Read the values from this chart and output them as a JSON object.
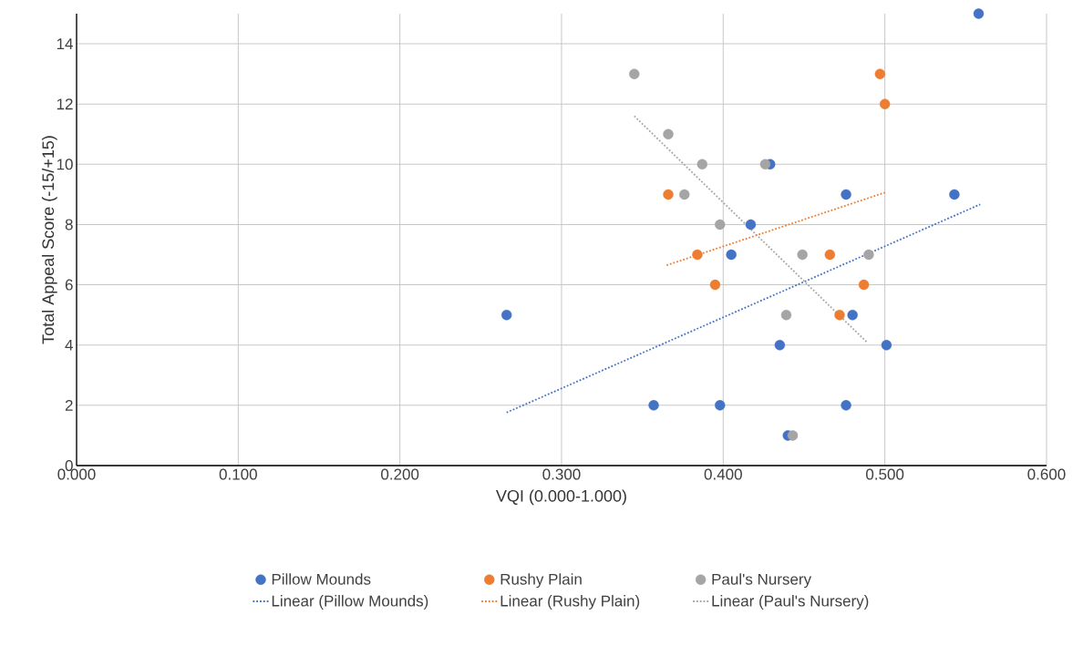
{
  "chart_data": {
    "type": "scatter",
    "xlabel": "VQI (0.000-1.000)",
    "ylabel": "Total Appeal Score (-15/+15)",
    "xlim": [
      0,
      0.6
    ],
    "ylim": [
      0,
      15
    ],
    "xticks": [
      {
        "value": 0,
        "label": "0.000"
      },
      {
        "value": 0.1,
        "label": "0.100"
      },
      {
        "value": 0.2,
        "label": "0.200"
      },
      {
        "value": 0.3,
        "label": "0.300"
      },
      {
        "value": 0.4,
        "label": "0.400"
      },
      {
        "value": 0.5,
        "label": "0.500"
      },
      {
        "value": 0.6,
        "label": "0.600"
      }
    ],
    "yticks": [
      0,
      2,
      4,
      6,
      8,
      10,
      12,
      14
    ],
    "grid": true,
    "legend": "bottom",
    "marker": "circle",
    "series": [
      {
        "name": "Pillow Mounds",
        "color": "#4472c4",
        "x": [
          0.558,
          0.266,
          0.405,
          0.417,
          0.429,
          0.476,
          0.543,
          0.48,
          0.435,
          0.501,
          0.357,
          0.398,
          0.476,
          0.44
        ],
        "values": [
          15,
          5,
          7,
          8,
          10,
          9,
          9,
          5,
          4,
          4,
          2,
          2,
          2,
          1
        ]
      },
      {
        "name": "Rushy Plain",
        "color": "#ed7d31",
        "x": [
          0.497,
          0.5,
          0.366,
          0.384,
          0.466,
          0.395,
          0.487,
          0.472
        ],
        "values": [
          13,
          12,
          9,
          7,
          7,
          6,
          6,
          5
        ]
      },
      {
        "name": "Paul's Nursery",
        "color": "#a5a5a5",
        "x": [
          0.345,
          0.366,
          0.387,
          0.426,
          0.376,
          0.398,
          0.449,
          0.49,
          0.439,
          0.443
        ],
        "values": [
          13,
          11,
          10,
          10,
          9,
          8,
          7,
          7,
          5,
          1
        ]
      },
      {
        "name": "Linear (Pillow Mounds)",
        "type": "line",
        "marker": "none",
        "line_style": "dotted",
        "color": "#4472c4",
        "x": [
          0.266,
          0.559
        ],
        "values": [
          1.76,
          8.67
        ]
      },
      {
        "name": "Linear (Rushy Plain)",
        "type": "line",
        "marker": "none",
        "line_style": "dotted",
        "color": "#ed7d31",
        "x": [
          0.365,
          0.501
        ],
        "values": [
          6.65,
          9.08
        ]
      },
      {
        "name": "Linear (Paul's Nursery)",
        "type": "line",
        "marker": "none",
        "line_style": "dotted",
        "color": "#a5a5a5",
        "x": [
          0.345,
          0.489
        ],
        "values": [
          11.6,
          4.09
        ]
      }
    ]
  }
}
